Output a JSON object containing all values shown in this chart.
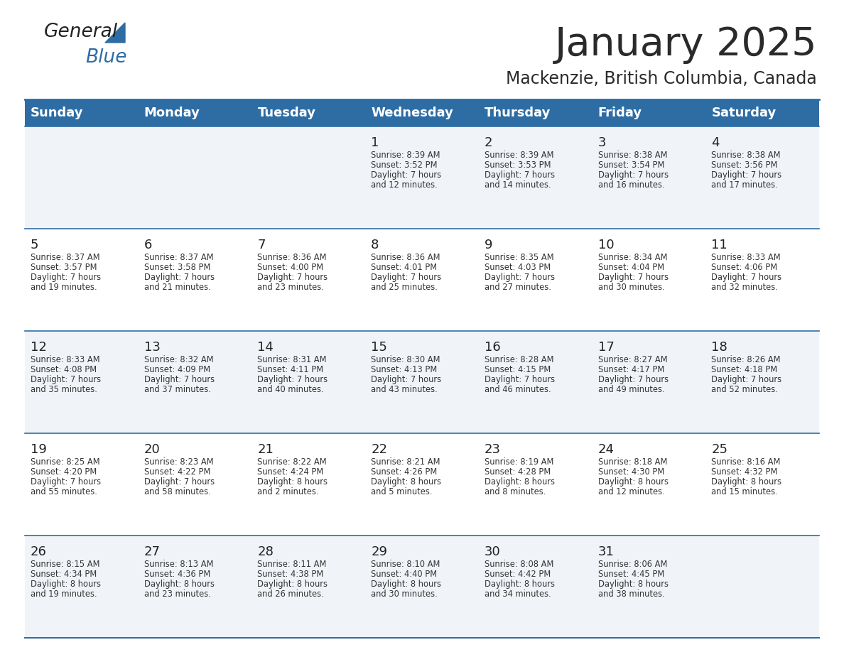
{
  "title": "January 2025",
  "subtitle": "Mackenzie, British Columbia, Canada",
  "header_bg": "#2E6DA4",
  "header_text_color": "#FFFFFF",
  "row_bg_light": "#F0F4F8",
  "row_bg_white": "#FFFFFF",
  "day_headers": [
    "Sunday",
    "Monday",
    "Tuesday",
    "Wednesday",
    "Thursday",
    "Friday",
    "Saturday"
  ],
  "title_color": "#2a2a2a",
  "subtitle_color": "#2a2a2a",
  "cell_text_color": "#333333",
  "day_number_color": "#222222",
  "separator_color": "#2E6DA4",
  "logo_general_color": "#222222",
  "logo_blue_color": "#2E6DA4",
  "logo_triangle_color": "#2E6DA4",
  "calendar_data": [
    [
      {
        "day": "",
        "sunrise": "",
        "sunset": "",
        "daylight": ""
      },
      {
        "day": "",
        "sunrise": "",
        "sunset": "",
        "daylight": ""
      },
      {
        "day": "",
        "sunrise": "",
        "sunset": "",
        "daylight": ""
      },
      {
        "day": "1",
        "sunrise": "8:39 AM",
        "sunset": "3:52 PM",
        "daylight": "7 hours\nand 12 minutes."
      },
      {
        "day": "2",
        "sunrise": "8:39 AM",
        "sunset": "3:53 PM",
        "daylight": "7 hours\nand 14 minutes."
      },
      {
        "day": "3",
        "sunrise": "8:38 AM",
        "sunset": "3:54 PM",
        "daylight": "7 hours\nand 16 minutes."
      },
      {
        "day": "4",
        "sunrise": "8:38 AM",
        "sunset": "3:56 PM",
        "daylight": "7 hours\nand 17 minutes."
      }
    ],
    [
      {
        "day": "5",
        "sunrise": "8:37 AM",
        "sunset": "3:57 PM",
        "daylight": "7 hours\nand 19 minutes."
      },
      {
        "day": "6",
        "sunrise": "8:37 AM",
        "sunset": "3:58 PM",
        "daylight": "7 hours\nand 21 minutes."
      },
      {
        "day": "7",
        "sunrise": "8:36 AM",
        "sunset": "4:00 PM",
        "daylight": "7 hours\nand 23 minutes."
      },
      {
        "day": "8",
        "sunrise": "8:36 AM",
        "sunset": "4:01 PM",
        "daylight": "7 hours\nand 25 minutes."
      },
      {
        "day": "9",
        "sunrise": "8:35 AM",
        "sunset": "4:03 PM",
        "daylight": "7 hours\nand 27 minutes."
      },
      {
        "day": "10",
        "sunrise": "8:34 AM",
        "sunset": "4:04 PM",
        "daylight": "7 hours\nand 30 minutes."
      },
      {
        "day": "11",
        "sunrise": "8:33 AM",
        "sunset": "4:06 PM",
        "daylight": "7 hours\nand 32 minutes."
      }
    ],
    [
      {
        "day": "12",
        "sunrise": "8:33 AM",
        "sunset": "4:08 PM",
        "daylight": "7 hours\nand 35 minutes."
      },
      {
        "day": "13",
        "sunrise": "8:32 AM",
        "sunset": "4:09 PM",
        "daylight": "7 hours\nand 37 minutes."
      },
      {
        "day": "14",
        "sunrise": "8:31 AM",
        "sunset": "4:11 PM",
        "daylight": "7 hours\nand 40 minutes."
      },
      {
        "day": "15",
        "sunrise": "8:30 AM",
        "sunset": "4:13 PM",
        "daylight": "7 hours\nand 43 minutes."
      },
      {
        "day": "16",
        "sunrise": "8:28 AM",
        "sunset": "4:15 PM",
        "daylight": "7 hours\nand 46 minutes."
      },
      {
        "day": "17",
        "sunrise": "8:27 AM",
        "sunset": "4:17 PM",
        "daylight": "7 hours\nand 49 minutes."
      },
      {
        "day": "18",
        "sunrise": "8:26 AM",
        "sunset": "4:18 PM",
        "daylight": "7 hours\nand 52 minutes."
      }
    ],
    [
      {
        "day": "19",
        "sunrise": "8:25 AM",
        "sunset": "4:20 PM",
        "daylight": "7 hours\nand 55 minutes."
      },
      {
        "day": "20",
        "sunrise": "8:23 AM",
        "sunset": "4:22 PM",
        "daylight": "7 hours\nand 58 minutes."
      },
      {
        "day": "21",
        "sunrise": "8:22 AM",
        "sunset": "4:24 PM",
        "daylight": "8 hours\nand 2 minutes."
      },
      {
        "day": "22",
        "sunrise": "8:21 AM",
        "sunset": "4:26 PM",
        "daylight": "8 hours\nand 5 minutes."
      },
      {
        "day": "23",
        "sunrise": "8:19 AM",
        "sunset": "4:28 PM",
        "daylight": "8 hours\nand 8 minutes."
      },
      {
        "day": "24",
        "sunrise": "8:18 AM",
        "sunset": "4:30 PM",
        "daylight": "8 hours\nand 12 minutes."
      },
      {
        "day": "25",
        "sunrise": "8:16 AM",
        "sunset": "4:32 PM",
        "daylight": "8 hours\nand 15 minutes."
      }
    ],
    [
      {
        "day": "26",
        "sunrise": "8:15 AM",
        "sunset": "4:34 PM",
        "daylight": "8 hours\nand 19 minutes."
      },
      {
        "day": "27",
        "sunrise": "8:13 AM",
        "sunset": "4:36 PM",
        "daylight": "8 hours\nand 23 minutes."
      },
      {
        "day": "28",
        "sunrise": "8:11 AM",
        "sunset": "4:38 PM",
        "daylight": "8 hours\nand 26 minutes."
      },
      {
        "day": "29",
        "sunrise": "8:10 AM",
        "sunset": "4:40 PM",
        "daylight": "8 hours\nand 30 minutes."
      },
      {
        "day": "30",
        "sunrise": "8:08 AM",
        "sunset": "4:42 PM",
        "daylight": "8 hours\nand 34 minutes."
      },
      {
        "day": "31",
        "sunrise": "8:06 AM",
        "sunset": "4:45 PM",
        "daylight": "8 hours\nand 38 minutes."
      },
      {
        "day": "",
        "sunrise": "",
        "sunset": "",
        "daylight": ""
      }
    ]
  ]
}
